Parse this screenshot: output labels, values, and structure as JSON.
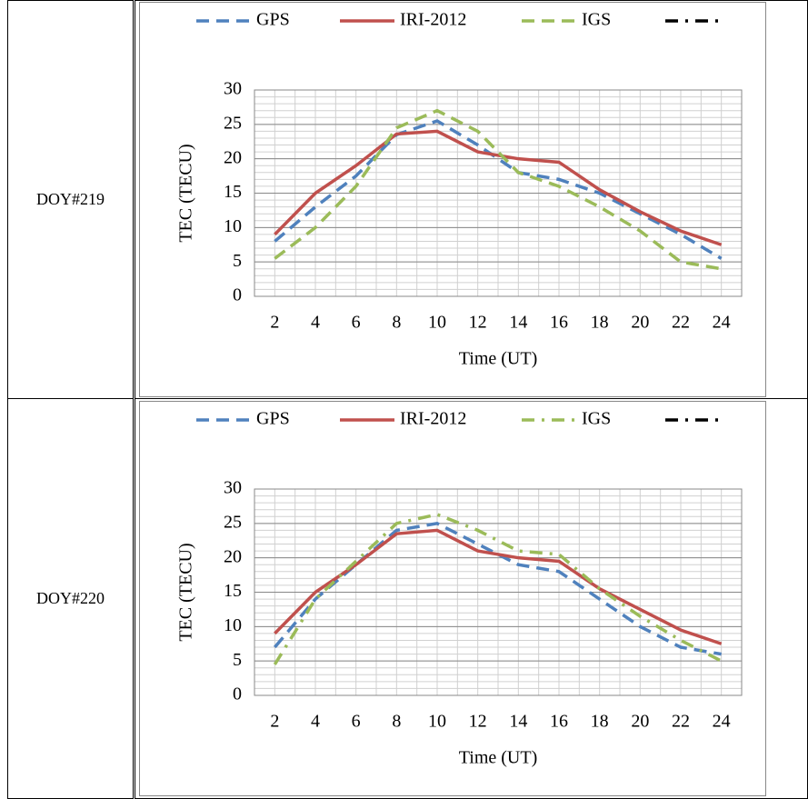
{
  "table": {
    "rows": [
      [
        "DOY#219"
      ],
      [
        "DOY#220"
      ]
    ]
  },
  "chart_data": [
    {
      "type": "line",
      "ylabel": "TEC (TECU)",
      "xlabel": "Time (UT)",
      "categories": [
        "2",
        "4",
        "6",
        "8",
        "10",
        "12",
        "14",
        "16",
        "18",
        "20",
        "22",
        "24"
      ],
      "ylim": [
        0,
        30
      ],
      "yticks": [
        0,
        5,
        10,
        15,
        20,
        25,
        30
      ],
      "grid": true,
      "series": [
        {
          "name": "GPS",
          "color": "#4f81bd",
          "dash": "dashed",
          "values": [
            8,
            13,
            17.5,
            23.5,
            25.5,
            22,
            18,
            17,
            15,
            12,
            9,
            5.5
          ]
        },
        {
          "name": "IRI-2012",
          "color": "#c0504d",
          "dash": "solid",
          "values": [
            9,
            15,
            19,
            23.6,
            24,
            21,
            20,
            19.5,
            15.5,
            12.3,
            9.5,
            7.5
          ]
        },
        {
          "name": "IGS",
          "color": "#9bbb59",
          "dash": "dashed",
          "values": [
            5.5,
            10,
            16,
            24.5,
            27,
            24,
            18,
            16,
            13,
            9.5,
            5,
            4
          ]
        }
      ]
    },
    {
      "type": "line",
      "ylabel": "TEC (TECU)",
      "xlabel": "Time (UT)",
      "categories": [
        "2",
        "4",
        "6",
        "8",
        "10",
        "12",
        "14",
        "16",
        "18",
        "20",
        "22",
        "24"
      ],
      "ylim": [
        0,
        30
      ],
      "yticks": [
        0,
        5,
        10,
        15,
        20,
        25,
        30
      ],
      "grid": true,
      "series": [
        {
          "name": "GPS",
          "color": "#4f81bd",
          "dash": "dashed",
          "values": [
            7,
            14,
            19,
            24,
            25,
            22,
            19,
            18,
            14,
            10,
            7,
            6
          ]
        },
        {
          "name": "IRI-2012",
          "color": "#c0504d",
          "dash": "solid",
          "values": [
            9,
            15,
            19,
            23.5,
            24,
            21,
            20,
            19.5,
            15.5,
            12.5,
            9.5,
            7.5
          ]
        },
        {
          "name": "IGS",
          "color": "#9bbb59",
          "dash": "dashdot",
          "values": [
            4.5,
            14,
            19.5,
            25,
            26.3,
            24,
            21,
            20.5,
            15.5,
            11.5,
            8,
            5
          ]
        }
      ]
    }
  ]
}
